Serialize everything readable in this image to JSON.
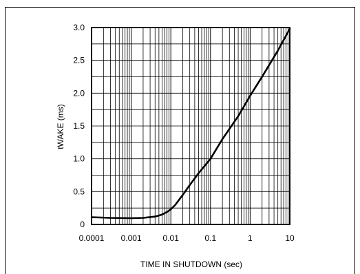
{
  "chart_data": {
    "type": "line",
    "title": "",
    "xlabel": "TIME IN SHUTDOWN (sec)",
    "ylabel": "tWAKE (ms)",
    "xscale": "log",
    "xlim": [
      0.0001,
      10
    ],
    "ylim": [
      0,
      3.0
    ],
    "grid": true,
    "x_tick_labels": [
      "0.0001",
      "0.001",
      "0.01",
      "0.1",
      "1",
      "10"
    ],
    "x_ticks": [
      0.0001,
      0.001,
      0.01,
      0.1,
      1,
      10
    ],
    "y_tick_labels": [
      "0",
      "0.5",
      "1.0",
      "1.5",
      "2.0",
      "2.5",
      "3.0"
    ],
    "y_ticks": [
      0,
      0.5,
      1.0,
      1.5,
      2.0,
      2.5,
      3.0
    ],
    "series": [
      {
        "x": [
          0.0001,
          0.0003,
          0.001,
          0.002,
          0.004,
          0.006,
          0.008,
          0.01,
          0.013,
          0.02,
          0.03,
          0.05,
          0.1,
          0.2,
          0.5,
          1,
          2,
          5,
          10
        ],
        "y": [
          0.11,
          0.1,
          0.095,
          0.1,
          0.12,
          0.15,
          0.19,
          0.23,
          0.3,
          0.45,
          0.6,
          0.78,
          1.0,
          1.3,
          1.65,
          1.96,
          2.25,
          2.65,
          2.98
        ]
      }
    ]
  }
}
